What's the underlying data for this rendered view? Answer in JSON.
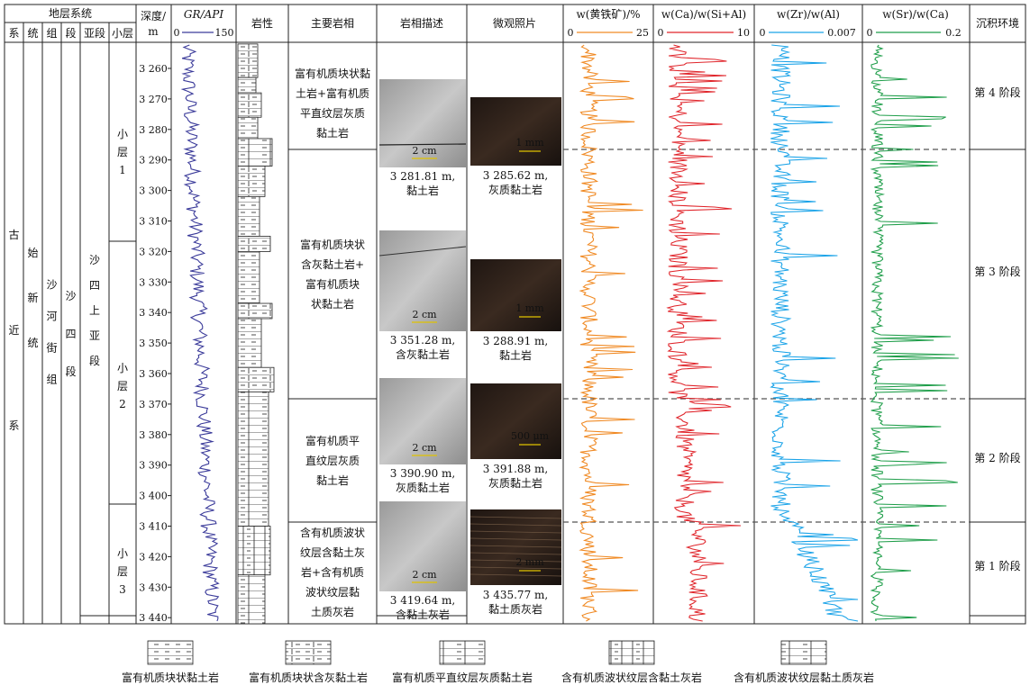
{
  "header": {
    "strat_system": "地层系统",
    "cols": [
      "系",
      "统",
      "组",
      "段",
      "亚段",
      "小层"
    ],
    "depth_line1": "深度/",
    "depth_line2": "m",
    "gr_title": "GR/API",
    "gr_min": "0",
    "gr_max": "150",
    "lithology": "岩性",
    "facies": "主要岩相",
    "description": "岩相描述",
    "micro": "微观照片",
    "pyrite_title": "w(黄铁矿)/%",
    "pyrite_min": "0",
    "pyrite_max": "25",
    "ca_title": "w(Ca)/w(Si+Al)",
    "ca_min": "0",
    "ca_max": "10",
    "zr_title": "w(Zr)/w(Al)",
    "zr_min": "0",
    "zr_max": "0.007",
    "sr_title": "w(Sr)/w(Ca)",
    "sr_min": "0",
    "sr_max": "0.2",
    "environment": "沉积环境"
  },
  "strata": {
    "system": [
      "古",
      "近",
      "系"
    ],
    "series": [
      "始",
      "新",
      "统"
    ],
    "formation": [
      "沙",
      "河",
      "街",
      "组"
    ],
    "member": [
      "沙",
      "四",
      "段"
    ],
    "submember": [
      "沙",
      "四",
      "上",
      "亚",
      "段"
    ],
    "layer1": [
      "小",
      "层",
      "1"
    ],
    "layer2": [
      "小",
      "层",
      "2"
    ],
    "layer3": [
      "小",
      "层",
      "3"
    ]
  },
  "depth_ticks": [
    "3 260",
    "3 270",
    "3 280",
    "3 290",
    "3 300",
    "3 310",
    "3 320",
    "3 330",
    "3 340",
    "3 350",
    "3 360",
    "3 370",
    "3 380",
    "3 390",
    "3 400",
    "3 410",
    "3 420",
    "3 430",
    "3 440"
  ],
  "facies": [
    [
      "富有机质块状黏",
      "土岩+富有机质",
      "平直纹层灰质",
      "黏土岩"
    ],
    [
      "富有机质块状",
      "含灰黏土岩+",
      "富有机质块",
      "状黏土岩"
    ],
    [
      "富有机质平",
      "直纹层灰质",
      "黏土岩"
    ],
    [
      "含有机质波状",
      "纹层含黏土灰",
      "岩+含有机质",
      "波状纹层黏",
      "土质灰岩"
    ]
  ],
  "core_photos": [
    {
      "scale": "2 cm",
      "cap1": "3 281.81 m,",
      "cap2": "黏土岩"
    },
    {
      "scale": "2 cm",
      "cap1": "3 351.28 m,",
      "cap2": "含灰黏土岩"
    },
    {
      "scale": "2 cm",
      "cap1": "3 390.90 m,",
      "cap2": "灰质黏土岩"
    },
    {
      "scale": "2 cm",
      "cap1": "3 419.64 m,",
      "cap2": "含黏土灰岩"
    }
  ],
  "micro_photos": [
    {
      "scale": "1 mm",
      "cap1": "3 285.62 m,",
      "cap2": "灰质黏土岩"
    },
    {
      "scale": "1 mm",
      "cap1": "3 288.91 m,",
      "cap2": "黏土岩"
    },
    {
      "scale": "500 μm",
      "cap1": "3 391.88 m,",
      "cap2": "灰质黏土岩"
    },
    {
      "scale": "2 mm",
      "cap1": "3 435.77 m,",
      "cap2": "黏土质灰岩"
    }
  ],
  "stages": [
    "第 4 阶段",
    "第 3 阶段",
    "第 2 阶段",
    "第 1 阶段"
  ],
  "legend": [
    "富有机质块状黏土岩",
    "富有机质块状含灰黏土岩",
    "富有机质平直纹层灰质黏土岩",
    "含有机质波状纹层含黏土灰岩",
    "含有机质波状纹层黏土质灰岩"
  ],
  "colors": {
    "gr": "#3b3b9a",
    "pyrite": "#f08a24",
    "ca": "#e0252b",
    "zr": "#1aa3e8",
    "sr": "#1f9e4a"
  },
  "chart_data": {
    "type": "line",
    "y_axis": "depth (m)",
    "ylim": [
      3252,
      3442
    ],
    "stage_boundaries_m": [
      3286,
      3368,
      3409
    ],
    "series": [
      {
        "name": "GR/API",
        "xlim": [
          0,
          150
        ]
      },
      {
        "name": "w(黄铁矿)/%",
        "xlim": [
          0,
          25
        ]
      },
      {
        "name": "w(Ca)/w(Si+Al)",
        "xlim": [
          0,
          10
        ]
      },
      {
        "name": "w(Zr)/w(Al)",
        "xlim": [
          0,
          0.007
        ]
      },
      {
        "name": "w(Sr)/w(Ca)",
        "xlim": [
          0,
          0.2
        ]
      }
    ]
  }
}
